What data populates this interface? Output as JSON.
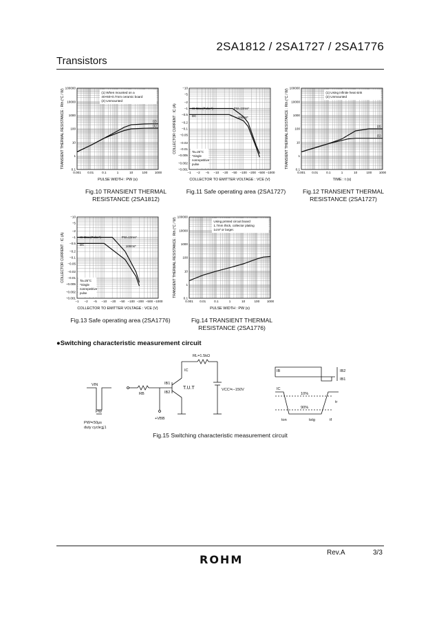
{
  "header": {
    "title": "2SA1812 / 2SA1727 / 2SA1776",
    "section": "Transistors"
  },
  "figures": {
    "fig10": {
      "caption_line1": "Fig.10 TRANSIENT THERMAL",
      "caption_line2": "RESISTANCE (2SA1812)"
    },
    "fig11": {
      "caption": "Fig.11 Safe operating area (2SA1727)"
    },
    "fig12": {
      "caption_line1": "Fig.12 TRANSIENT THERMAL",
      "caption_line2": "RESISTANCE (2SA1727)"
    },
    "fig13": {
      "caption": "Fig.13 Safe operating area (2SA1776)"
    },
    "fig14": {
      "caption_line1": "Fig.14 TRANSIENT THERMAL",
      "caption_line2": "RESISTANCE (2SA1776)"
    },
    "fig15": {
      "caption": "Fig.15 Switching characteristic measurement circuit"
    }
  },
  "switching": {
    "title": "●Switching characteristic measurement circuit",
    "rl": "RL=1.5kΩ",
    "ic": "IC",
    "ib1": "IB1",
    "ib2": "IB2",
    "rb": "RB",
    "tut": "T.U.T",
    "vcc": "VCC≒−150V",
    "vbb": "+VBB",
    "vin": "VIN",
    "pw": "PW",
    "pw_note1": "PW≒50μs",
    "pw_note2": "duty cycle≦1",
    "ib_label": "IB",
    "ic_label": "IC",
    "ib2_label": "IB2",
    "ib1_label": "IB1",
    "ten": "10%",
    "ninety": "90%",
    "ton": "ton",
    "tstg": "tstg",
    "tf": "tf",
    "tr": "tr"
  },
  "footer": {
    "rev": "Rev.A",
    "page": "3/3",
    "logo": "ROHM"
  },
  "chart_data": [
    {
      "type": "line",
      "id": "fig10",
      "xlabel": "PULSE WIDTH : PW (s)",
      "ylabel": "TRANSIENT THERMAL RESISTANCE : Rth (°C / W)",
      "x_scale": "log",
      "y_scale": "log",
      "xlim": [
        0.001,
        1000
      ],
      "ylim": [
        0.1,
        100000
      ],
      "xticks": [
        "0.001",
        "0.01",
        "0.1",
        "1",
        "10",
        "100",
        "1000"
      ],
      "yticks": [
        "0.1",
        "1",
        "10",
        "100",
        "1000",
        "10000",
        "100000"
      ],
      "legend": [
        "(1) When mounted on a",
        "40×60×0.7mm ceramic board",
        "(2) Unmounted"
      ],
      "series": [
        {
          "name": "(1)",
          "x": [
            0.001,
            0.01,
            0.1,
            1,
            3,
            10,
            100,
            300,
            1000
          ],
          "y": [
            2,
            6,
            20,
            50,
            75,
            100,
            110,
            112,
            112
          ]
        },
        {
          "name": "(2)",
          "x": [
            0.001,
            0.01,
            0.1,
            1,
            3,
            10,
            100,
            300,
            1000
          ],
          "y": [
            2,
            6,
            20,
            70,
            130,
            200,
            230,
            235,
            235
          ]
        }
      ]
    },
    {
      "type": "line",
      "id": "fig11",
      "xlabel": "COLLECTOR TO EMITTER VOLTAGE : VCE (V)",
      "ylabel": "COLLECTOR CURRENT : IC (A)",
      "x_scale": "log",
      "y_scale": "log",
      "xlim": [
        -1,
        -1000
      ],
      "ylim": [
        -0.001,
        -10
      ],
      "xticks": [
        "−1",
        "−2",
        "−5",
        "−10",
        "−20",
        "−50",
        "−100",
        "−200",
        "−500",
        "−1000"
      ],
      "yticks": [
        "−10",
        "−5",
        "−2",
        "−1",
        "−0.5",
        "−0.2",
        "−0.1",
        "−0.05",
        "−0.02",
        "−0.01",
        "−0.005",
        "−0.002",
        "−0.001"
      ],
      "annotations": [
        "IC Max.(Pulse*)",
        "DC",
        "PW=10ms*",
        "100ms*",
        "Ta=25°C",
        "*Single",
        "nonrepetitive",
        "pulse"
      ],
      "series": [
        {
          "name": "PW=10ms*",
          "x": [
            -1,
            -40,
            -100,
            -150,
            -300,
            -400
          ],
          "y": [
            -1,
            -1,
            -0.4,
            -0.2,
            -0.015,
            -0.006
          ]
        },
        {
          "name": "100ms*",
          "x": [
            -1,
            -30,
            -100,
            -150,
            -300,
            -400
          ],
          "y": [
            -0.5,
            -0.5,
            -0.25,
            -0.13,
            -0.012,
            -0.004
          ]
        }
      ]
    },
    {
      "type": "line",
      "id": "fig12",
      "xlabel": "TIME : t (s)",
      "ylabel": "TRANSIENT THERMAL RESISTANCE : Rth (°C / W)",
      "x_scale": "log",
      "y_scale": "log",
      "xlim": [
        0.001,
        1000
      ],
      "ylim": [
        0.1,
        100000
      ],
      "xticks": [
        "0.001",
        "0.01",
        "0.1",
        "1",
        "10",
        "100",
        "1000"
      ],
      "yticks": [
        "0.1",
        "1",
        "10",
        "100",
        "1000",
        "10000",
        "100000"
      ],
      "legend": [
        "(1) Using infinite heat sink",
        "(2) Unmounted"
      ],
      "series": [
        {
          "name": "(1)",
          "x": [
            0.001,
            0.01,
            0.1,
            1,
            3,
            10,
            100,
            1000
          ],
          "y": [
            2,
            4,
            8,
            14,
            18,
            20,
            20,
            20
          ]
        },
        {
          "name": "(2)",
          "x": [
            0.001,
            0.01,
            0.1,
            1,
            3,
            10,
            100,
            1000
          ],
          "y": [
            2,
            4,
            8,
            18,
            35,
            70,
            100,
            100
          ]
        }
      ]
    },
    {
      "type": "line",
      "id": "fig13",
      "xlabel": "COLLECTOR TO EMITTER VOLTAGE : VCE (V)",
      "ylabel": "COLLECTOR CURRENT : IC (A)",
      "x_scale": "log",
      "y_scale": "log",
      "xlim": [
        -1,
        -1000
      ],
      "ylim": [
        -0.001,
        -10
      ],
      "xticks": [
        "−1",
        "−2",
        "−5",
        "−10",
        "−20",
        "−50",
        "−100",
        "−200",
        "−500",
        "−1000"
      ],
      "yticks": [
        "−10",
        "−5",
        "−2",
        "−1",
        "−0.5",
        "−0.2",
        "−0.1",
        "−0.05",
        "−0.02",
        "−0.01",
        "−0.005",
        "−0.002",
        "−0.001"
      ],
      "annotations": [
        "IC Max.(Pulse*)",
        "DC",
        "PW=10ms*",
        "100ms*",
        "Ta=25°C",
        "*Single",
        "nonrepetitive",
        "pulse"
      ],
      "series": [
        {
          "name": "PW=10ms*",
          "x": [
            -1,
            -20,
            -60,
            -150,
            -200
          ],
          "y": [
            -1,
            -1,
            -0.2,
            -0.02,
            -0.006
          ]
        },
        {
          "name": "100ms*",
          "x": [
            -1,
            -10,
            -60,
            -150,
            -200
          ],
          "y": [
            -0.5,
            -0.5,
            -0.08,
            -0.012,
            -0.004
          ]
        }
      ]
    },
    {
      "type": "line",
      "id": "fig14",
      "xlabel": "PULSE WIDTH : PW (s)",
      "ylabel": "TRANSIENT THERMAL RESISTANCE : Rth (°C / W)",
      "x_scale": "log",
      "y_scale": "log",
      "xlim": [
        0.001,
        1000
      ],
      "ylim": [
        0.1,
        100000
      ],
      "xticks": [
        "0.001",
        "0.01",
        "0.1",
        "1",
        "10",
        "100",
        "1000"
      ],
      "yticks": [
        "0.1",
        "1",
        "10",
        "100",
        "1000",
        "10000",
        "100000"
      ],
      "legend": [
        "Using printed circuit board",
        "1.7mm thick, collector plating",
        "1cm² or larger."
      ],
      "series": [
        {
          "name": "",
          "x": [
            0.001,
            0.01,
            0.1,
            1,
            10,
            100,
            300,
            1000
          ],
          "y": [
            2,
            5,
            10,
            18,
            35,
            80,
            110,
            120
          ]
        }
      ]
    }
  ]
}
